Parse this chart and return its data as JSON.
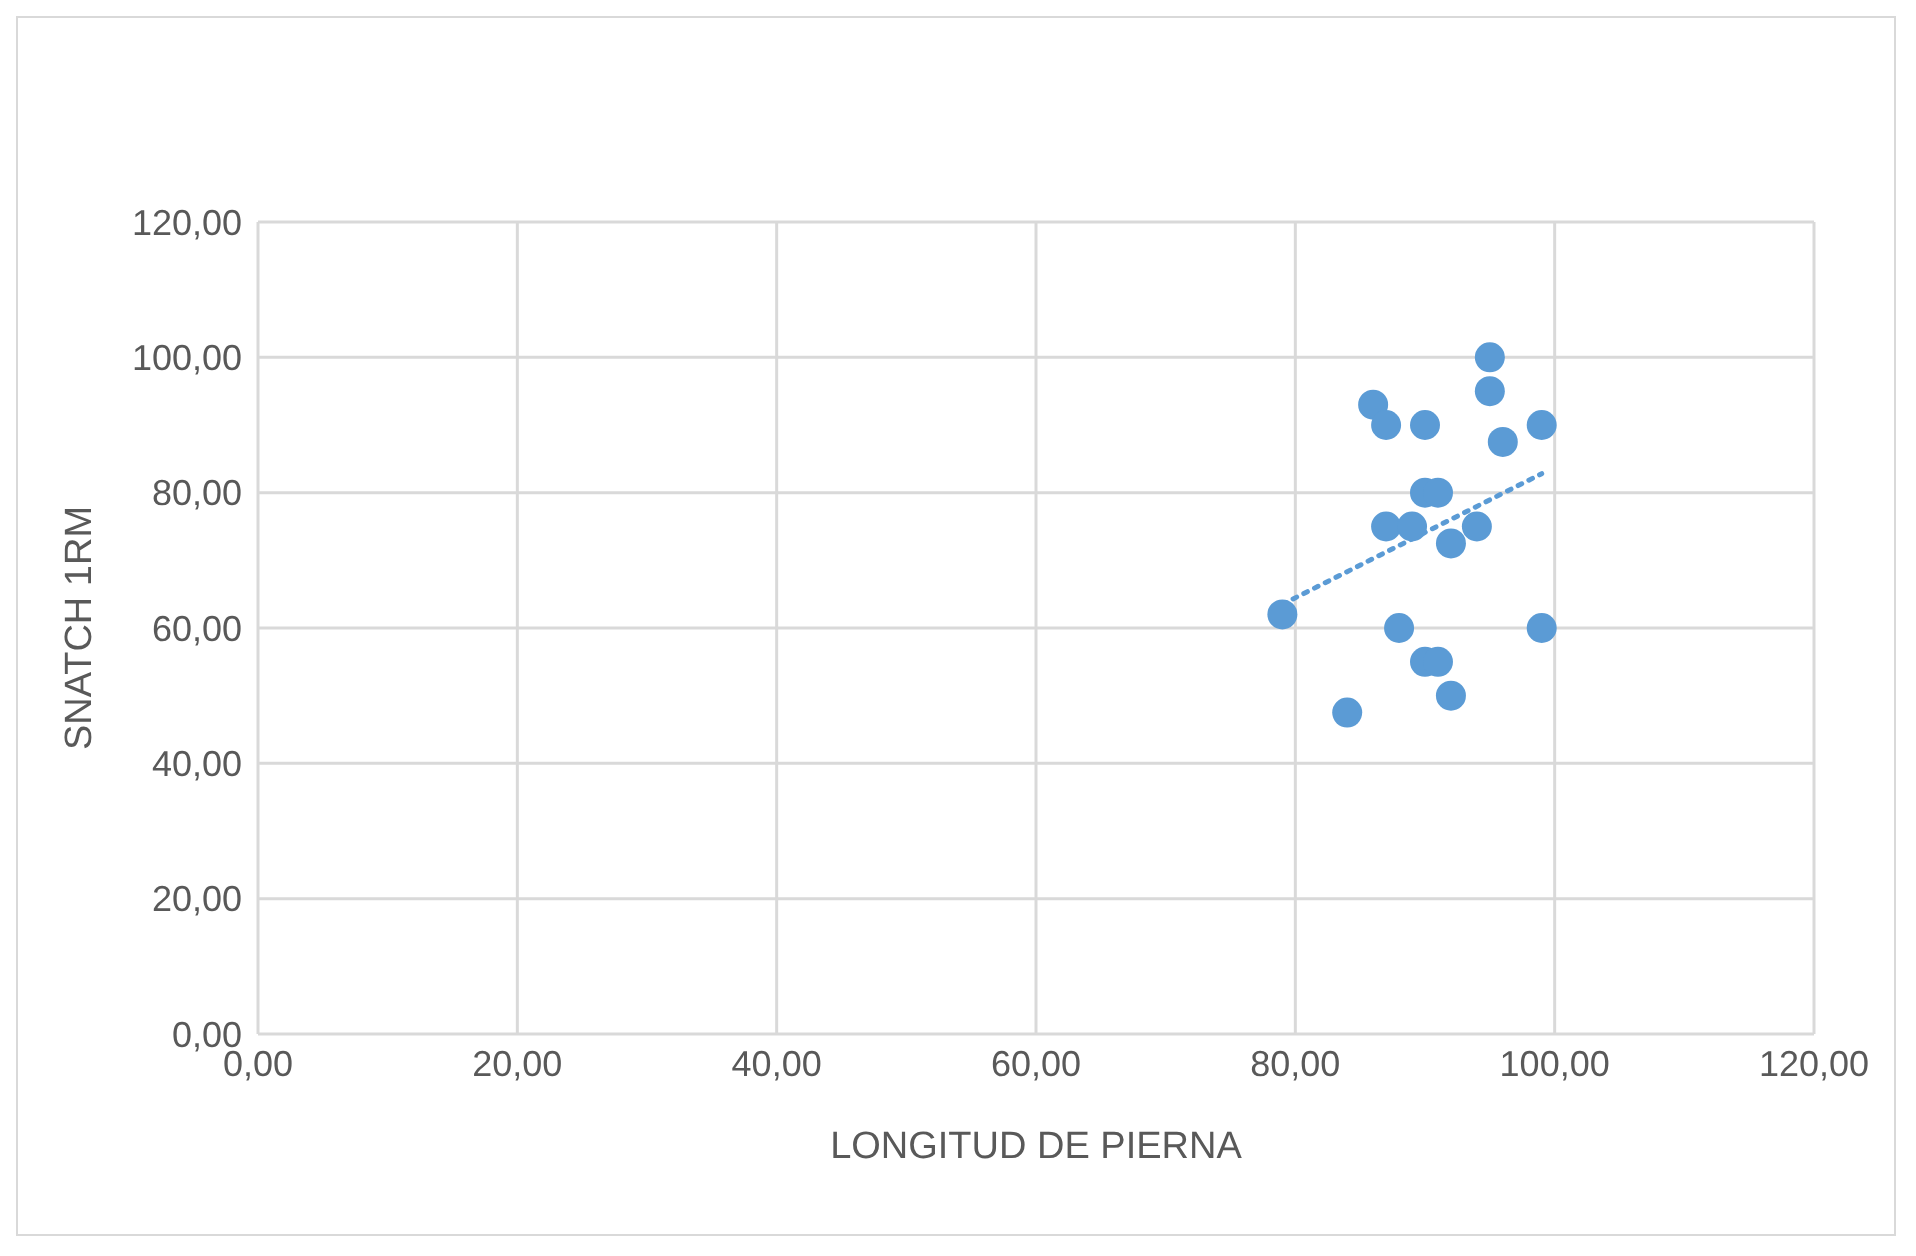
{
  "chart_data": {
    "type": "scatter",
    "xlabel": "LONGITUD DE PIERNA",
    "ylabel": "SNATCH 1RM",
    "series": [
      {
        "color": "#5b9bd5",
        "x": [
          79,
          84,
          86,
          87,
          87,
          88,
          89,
          90,
          90,
          90,
          91,
          91,
          92,
          92,
          94,
          95,
          95,
          96,
          99,
          99
        ],
        "values": [
          62,
          47.5,
          93,
          90,
          75,
          60,
          75,
          90,
          80,
          55,
          80,
          55,
          72.5,
          50,
          75,
          100,
          95,
          87.5,
          90,
          60
        ]
      },
      {
        "type": "line",
        "color": "#5b9bd5",
        "line_style": "dotted",
        "marker": "none",
        "x": [
          79,
          99
        ],
        "values": [
          63.5,
          82.8
        ]
      }
    ],
    "xlim": [
      0,
      120
    ],
    "ylim": [
      0,
      120
    ],
    "xticks": [
      {
        "value": 0,
        "label": "0,00"
      },
      {
        "value": 20,
        "label": "20,00"
      },
      {
        "value": 40,
        "label": "40,00"
      },
      {
        "value": 60,
        "label": "60,00"
      },
      {
        "value": 80,
        "label": "80,00"
      },
      {
        "value": 100,
        "label": "100,00"
      },
      {
        "value": 120,
        "label": "120,00"
      }
    ],
    "yticks": [
      {
        "value": 0,
        "label": "0,00"
      },
      {
        "value": 20,
        "label": "20,00"
      },
      {
        "value": 40,
        "label": "40,00"
      },
      {
        "value": 60,
        "label": "60,00"
      },
      {
        "value": 80,
        "label": "80,00"
      },
      {
        "value": 100,
        "label": "100,00"
      },
      {
        "value": 120,
        "label": "120,00"
      }
    ],
    "grid": true,
    "marker": "circle"
  }
}
